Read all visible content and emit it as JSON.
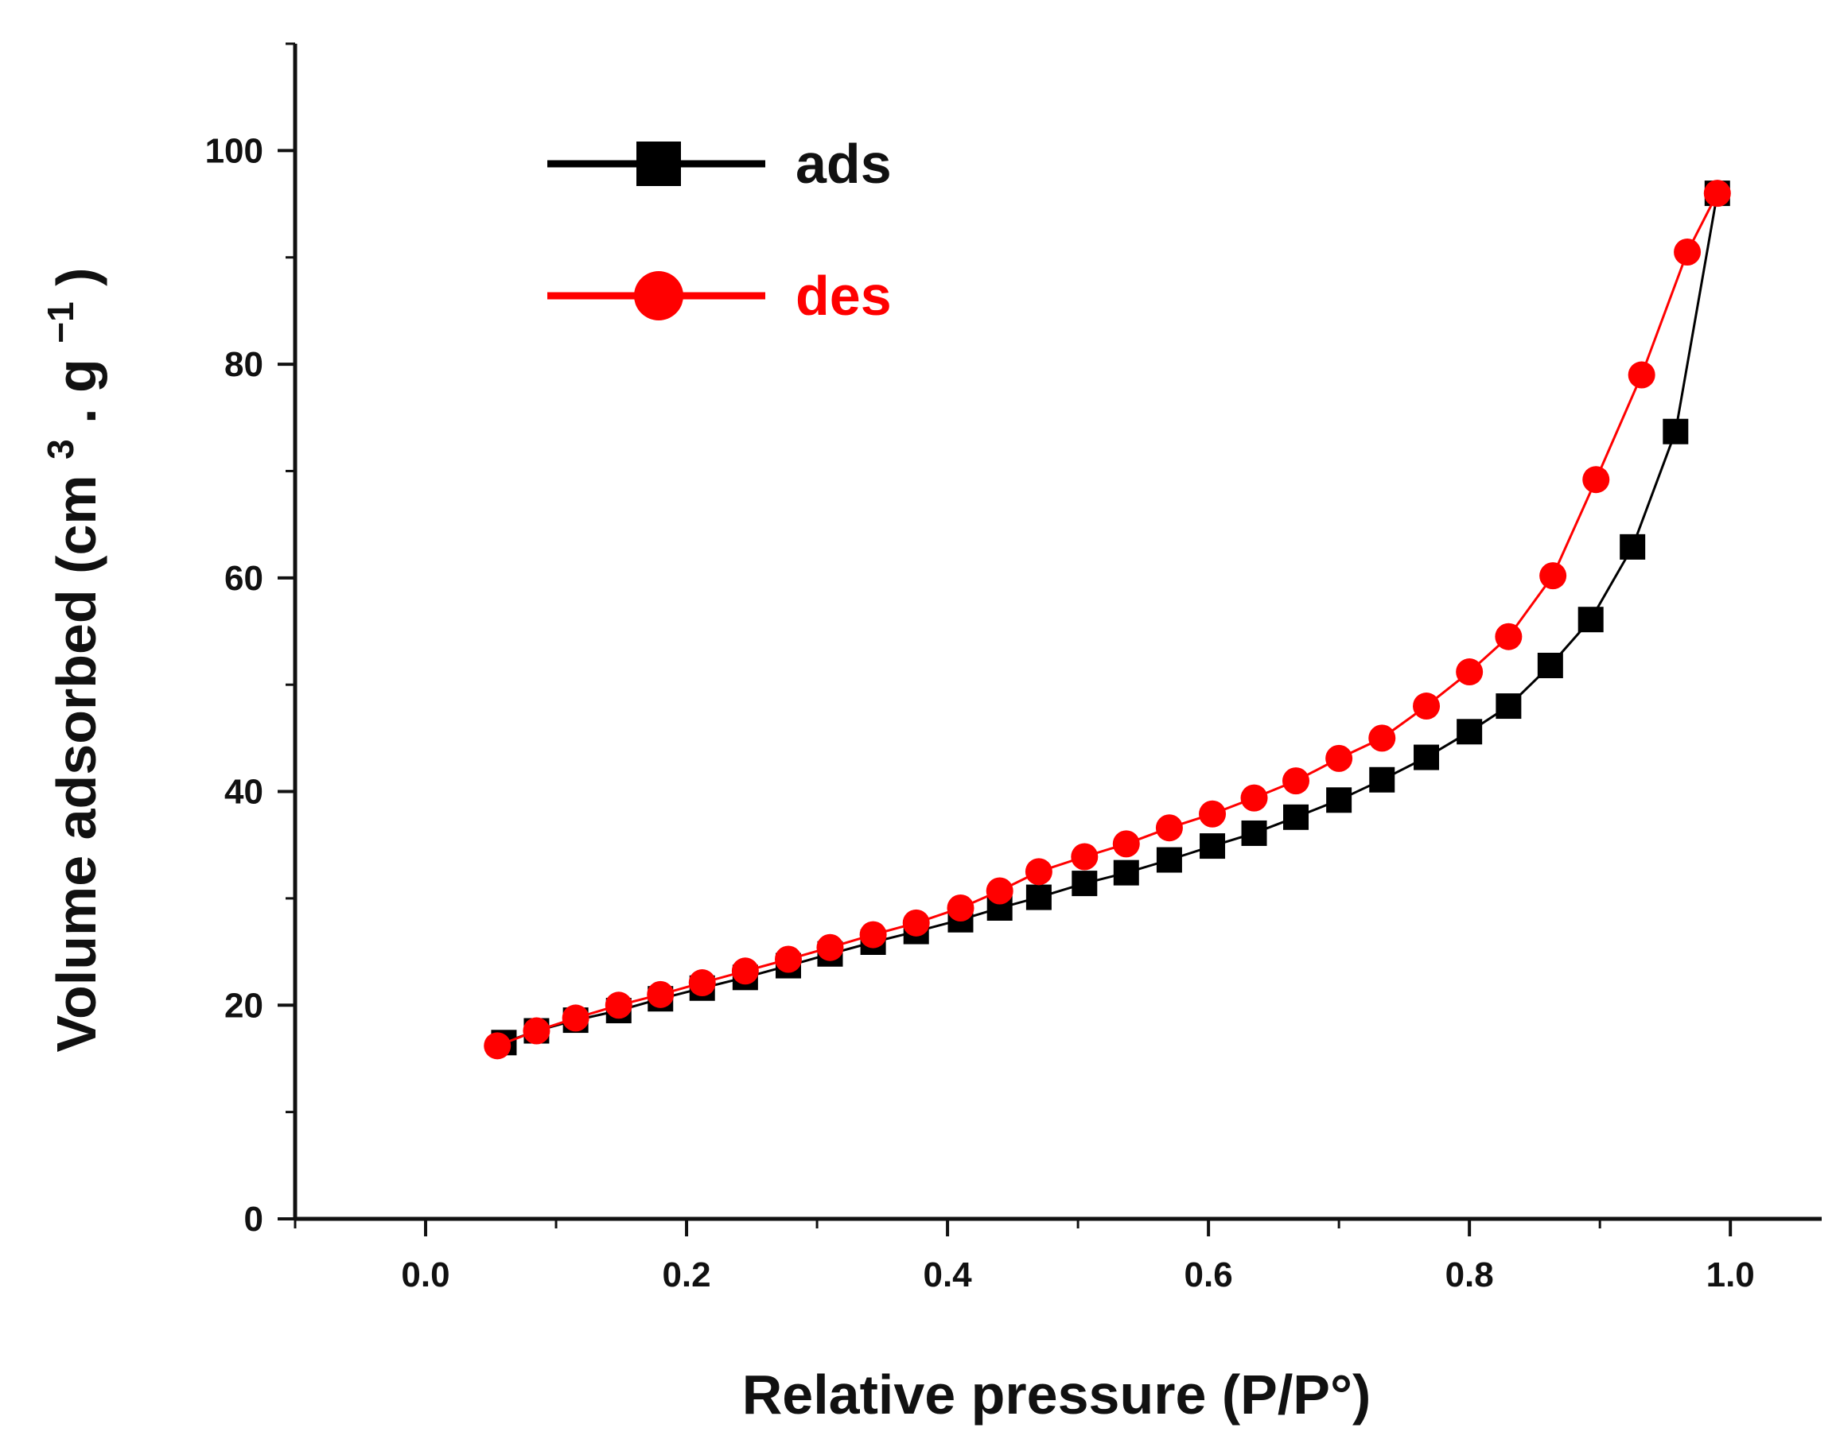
{
  "chart_data": {
    "type": "scatter",
    "title": "",
    "xlabel": "Relative pressure (P/P°)",
    "ylabel": {
      "prefix": "Volume adsorbed (cm",
      "sup1": "3",
      "middle": ". g",
      "sup2": "−1",
      "suffix": ")"
    },
    "xlim": [
      -0.1,
      1.07
    ],
    "ylim": [
      0,
      110
    ],
    "xticks": [
      "0.0",
      "0.2",
      "0.4",
      "0.6",
      "0.8",
      "1.0"
    ],
    "yticks": [
      "0",
      "20",
      "40",
      "60",
      "80",
      "100"
    ],
    "legend_position": "top-left",
    "series": [
      {
        "name": "ads",
        "color": "#000000",
        "marker": "square",
        "x": [
          0.06,
          0.085,
          0.115,
          0.148,
          0.18,
          0.212,
          0.245,
          0.278,
          0.31,
          0.343,
          0.376,
          0.41,
          0.44,
          0.47,
          0.505,
          0.537,
          0.57,
          0.603,
          0.635,
          0.667,
          0.7,
          0.733,
          0.767,
          0.8,
          0.83,
          0.862,
          0.893,
          0.925,
          0.958,
          0.99
        ],
        "y": [
          16.5,
          17.6,
          18.6,
          19.5,
          20.6,
          21.6,
          22.6,
          23.7,
          24.8,
          25.9,
          26.9,
          28.0,
          29.1,
          30.1,
          31.4,
          32.4,
          33.6,
          34.9,
          36.1,
          37.6,
          39.2,
          41.1,
          43.2,
          45.6,
          48.0,
          51.8,
          56.1,
          62.9,
          73.7,
          96.0
        ]
      },
      {
        "name": "des",
        "color": "#ff0000",
        "marker": "circle",
        "x": [
          0.99,
          0.967,
          0.932,
          0.897,
          0.864,
          0.83,
          0.8,
          0.767,
          0.733,
          0.7,
          0.667,
          0.635,
          0.603,
          0.57,
          0.537,
          0.505,
          0.47,
          0.44,
          0.41,
          0.376,
          0.343,
          0.31,
          0.278,
          0.245,
          0.212,
          0.18,
          0.148,
          0.115,
          0.085,
          0.055
        ],
        "y": [
          96.0,
          90.5,
          79.0,
          69.2,
          60.2,
          54.5,
          51.2,
          48.0,
          45.0,
          43.1,
          41.0,
          39.4,
          37.9,
          36.6,
          35.1,
          33.9,
          32.5,
          30.7,
          29.1,
          27.7,
          26.6,
          25.4,
          24.3,
          23.2,
          22.1,
          21.0,
          20.0,
          18.8,
          17.6,
          16.2
        ]
      }
    ]
  }
}
